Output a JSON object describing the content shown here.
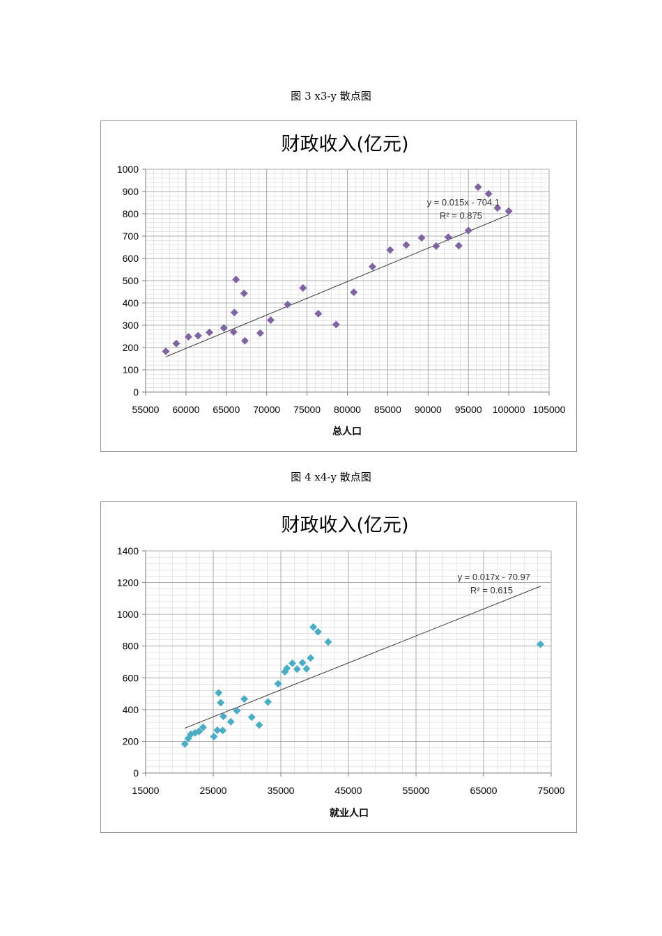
{
  "captions": {
    "fig3": "图 3 x3-y 散点图",
    "fig4": "图 4 x4-y 散点图"
  },
  "chart_data": [
    {
      "type": "scatter",
      "title": "财政收入(亿元)",
      "xlabel": "总人口",
      "ylabel": "",
      "xlim": [
        55000,
        105000
      ],
      "ylim": [
        0,
        1000
      ],
      "x_ticks": [
        55000,
        60000,
        65000,
        70000,
        75000,
        80000,
        85000,
        90000,
        95000,
        100000,
        105000
      ],
      "y_ticks": [
        0,
        100,
        200,
        300,
        400,
        500,
        600,
        700,
        800,
        900,
        1000
      ],
      "grid": true,
      "marker_color": "#8064a2",
      "trendline": {
        "slope": 0.015,
        "intercept": -704.1,
        "x_range": [
          57500,
          100000
        ],
        "equation": "y = 0.015x - 704.1",
        "r2": "R² = 0.875"
      },
      "points": [
        [
          57500,
          183
        ],
        [
          58800,
          218
        ],
        [
          60300,
          248
        ],
        [
          61500,
          253
        ],
        [
          62900,
          268
        ],
        [
          64700,
          288
        ],
        [
          65900,
          270
        ],
        [
          66000,
          357
        ],
        [
          66200,
          505
        ],
        [
          67200,
          443
        ],
        [
          67300,
          230
        ],
        [
          69200,
          265
        ],
        [
          70500,
          323
        ],
        [
          72600,
          393
        ],
        [
          74500,
          467
        ],
        [
          76400,
          352
        ],
        [
          78600,
          303
        ],
        [
          80800,
          448
        ],
        [
          83100,
          563
        ],
        [
          85300,
          638
        ],
        [
          87300,
          660
        ],
        [
          89200,
          692
        ],
        [
          91000,
          655
        ],
        [
          92500,
          695
        ],
        [
          93800,
          657
        ],
        [
          95000,
          725
        ],
        [
          96200,
          920
        ],
        [
          97500,
          890
        ],
        [
          98600,
          826
        ],
        [
          100000,
          812
        ]
      ]
    },
    {
      "type": "scatter",
      "title": "财政收入(亿元)",
      "xlabel": "就业人口",
      "ylabel": "",
      "xlim": [
        15000,
        75000
      ],
      "ylim": [
        0,
        1400
      ],
      "x_ticks": [
        15000,
        25000,
        35000,
        45000,
        55000,
        65000,
        75000
      ],
      "y_ticks": [
        0,
        200,
        400,
        600,
        800,
        1000,
        1200,
        1400
      ],
      "grid": true,
      "marker_color": "#4bacc6",
      "trendline": {
        "slope": 0.017,
        "intercept": -70.97,
        "x_range": [
          20800,
          73500
        ],
        "equation": "y = 0.017x - 70.97",
        "r2": "R² = 0.615"
      },
      "points": [
        [
          20800,
          183
        ],
        [
          21300,
          218
        ],
        [
          21700,
          245
        ],
        [
          22300,
          253
        ],
        [
          22900,
          262
        ],
        [
          23500,
          288
        ],
        [
          25100,
          230
        ],
        [
          25600,
          270
        ],
        [
          25800,
          505
        ],
        [
          26100,
          443
        ],
        [
          26400,
          268
        ],
        [
          26500,
          357
        ],
        [
          27600,
          323
        ],
        [
          28500,
          393
        ],
        [
          29600,
          467
        ],
        [
          30700,
          352
        ],
        [
          31800,
          303
        ],
        [
          33100,
          448
        ],
        [
          34600,
          563
        ],
        [
          35600,
          638
        ],
        [
          35900,
          660
        ],
        [
          36700,
          692
        ],
        [
          37400,
          655
        ],
        [
          38200,
          695
        ],
        [
          38800,
          657
        ],
        [
          39400,
          725
        ],
        [
          39800,
          920
        ],
        [
          40500,
          890
        ],
        [
          42000,
          826
        ],
        [
          73400,
          812
        ]
      ]
    }
  ]
}
